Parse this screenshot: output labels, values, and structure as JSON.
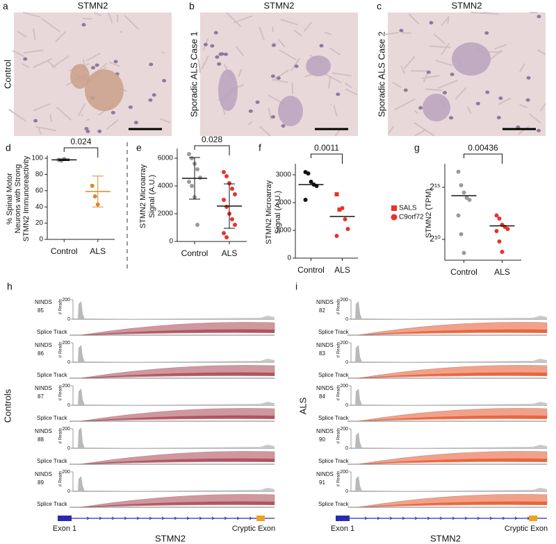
{
  "micrographs": [
    {
      "letter": "a",
      "title": "STMN2",
      "label": "Control"
    },
    {
      "letter": "b",
      "title": "STMN2",
      "label": "Sporadic ALS Case 1"
    },
    {
      "letter": "c",
      "title": "STMN2",
      "label": "Sporadic ALS Case 2"
    }
  ],
  "chart_data": [
    {
      "type": "scatter",
      "panel": "d",
      "pvalue": "0.024",
      "y_label": [
        "% Spinal Motor",
        "Neurons with Strong",
        "STMN2 Immunoreactivity"
      ],
      "categories": [
        "Control",
        "ALS"
      ],
      "colors": [
        "#9a9a9a",
        "#d9892c"
      ],
      "values": [
        [
          98,
          97,
          99
        ],
        [
          66,
          53,
          43
        ]
      ],
      "markers": [
        [
          "circle",
          "circle",
          "circle"
        ],
        [
          "circle",
          "circle",
          "circle"
        ]
      ],
      "means": [
        98,
        59
      ],
      "errors": [
        1,
        19
      ],
      "ylim": [
        0,
        100
      ],
      "yticks": [
        0,
        20,
        40,
        60,
        80,
        100
      ]
    },
    {
      "type": "scatter",
      "panel": "e",
      "pvalue": "0.028",
      "y_label": [
        "STMN2 Microarray",
        "Signal (A.U.)"
      ],
      "categories": [
        "Control",
        "ALS"
      ],
      "colors": [
        "#9a9a9a",
        "#e8322a"
      ],
      "values": [
        [
          6300,
          6000,
          5600,
          5200,
          4600,
          4300,
          4000,
          3200,
          1200
        ],
        [
          5000,
          4700,
          4200,
          3800,
          3400,
          3000,
          2500,
          2000,
          1600,
          1200,
          600,
          300
        ]
      ],
      "markers": [
        [
          "circle",
          "circle",
          "circle",
          "circle",
          "circle",
          "circle",
          "circle",
          "circle",
          "circle"
        ],
        [
          "circle",
          "circle",
          "circle",
          "circle",
          "circle",
          "circle",
          "circle",
          "circle",
          "circle",
          "circle",
          "circle",
          "circle"
        ]
      ],
      "means": [
        4550,
        2550
      ],
      "errors": [
        1500,
        1600
      ],
      "ylim": [
        0,
        6500
      ],
      "yticks": [
        0,
        2000,
        4000,
        6000
      ]
    },
    {
      "type": "scatter",
      "panel": "f",
      "pvalue": "0.0011",
      "y_label": [
        "STMN2 Microarray",
        "Signal (A.U.)"
      ],
      "categories": [
        "Control",
        "ALS"
      ],
      "colors": [
        "#111111",
        "#e8322a"
      ],
      "values": [
        [
          3100,
          3050,
          2750,
          2650,
          2600,
          2100
        ],
        [
          2300,
          1750,
          1800,
          1400,
          1050,
          800
        ]
      ],
      "markers": [
        [
          "circle",
          "circle",
          "circle",
          "circle",
          "circle",
          "circle"
        ],
        [
          "square",
          "square",
          "circle",
          "circle",
          "circle",
          "circle"
        ]
      ],
      "means": [
        2650,
        1500
      ],
      "legend": [
        {
          "name": "SALS",
          "marker": "square"
        },
        {
          "name": "C9orf72",
          "marker": "circle"
        }
      ],
      "ylim": [
        0,
        3300
      ],
      "yticks": [
        0,
        1000,
        2000,
        3000
      ]
    },
    {
      "type": "scatter",
      "panel": "g",
      "pvalue": "0.00436",
      "log_scale": 2,
      "y_label": [
        "STMN2 (TPM)"
      ],
      "categories": [
        "Control",
        "ALS"
      ],
      "colors": [
        "#9a9a9a",
        "#e8322a"
      ],
      "values": [
        [
          92682,
          37641,
          23170,
          16384,
          14263,
          5042,
          1448,
          416
        ],
        [
          5042,
          4096,
          2702,
          2353,
          2048,
          1783,
          891,
          446
        ]
      ],
      "markers": [
        [
          "circle",
          "circle",
          "circle",
          "circle",
          "circle",
          "circle",
          "circle",
          "circle"
        ],
        [
          "circle",
          "circle",
          "circle",
          "circle",
          "circle",
          "circle",
          "circle",
          "circle"
        ]
      ],
      "means": [
        18820,
        2521
      ],
      "ylim": [
        256,
        131072
      ],
      "yticks": [
        {
          "value": 1024,
          "label": "2¹⁰"
        },
        {
          "value": 32768,
          "label": "2¹⁵"
        }
      ]
    }
  ],
  "tracks": [
    {
      "letter": "h",
      "group": "Controls",
      "arc_color": "#a8434f",
      "samples": [
        {
          "name": "NINDS",
          "id": "85"
        },
        {
          "name": "NINDS",
          "id": "86"
        },
        {
          "name": "NINDS",
          "id": "87"
        },
        {
          "name": "NINDS",
          "id": "88"
        },
        {
          "name": "NINDS",
          "id": "89"
        }
      ],
      "reads_label": "# Reads",
      "reads_ylim": [
        0,
        200
      ],
      "reads_ticks": [
        0,
        200
      ],
      "splice_label": "Splice Track",
      "exon1": "Exon 1",
      "gene": "STMN2",
      "cryptic": "Cryptic Exon"
    },
    {
      "letter": "i",
      "group": "ALS",
      "arc_color": "#e8562a",
      "samples": [
        {
          "name": "NINDS",
          "id": "82"
        },
        {
          "name": "NINDS",
          "id": "83"
        },
        {
          "name": "NINDS",
          "id": "84"
        },
        {
          "name": "NINDS",
          "id": "90"
        },
        {
          "name": "NINDS",
          "id": "91"
        }
      ],
      "reads_label": "# Reads",
      "reads_ylim": [
        0,
        200
      ],
      "reads_ticks": [
        0,
        200
      ],
      "splice_label": "Splice Track",
      "exon1": "Exon 1",
      "gene": "STMN2",
      "cryptic": "Cryptic Exon"
    }
  ]
}
